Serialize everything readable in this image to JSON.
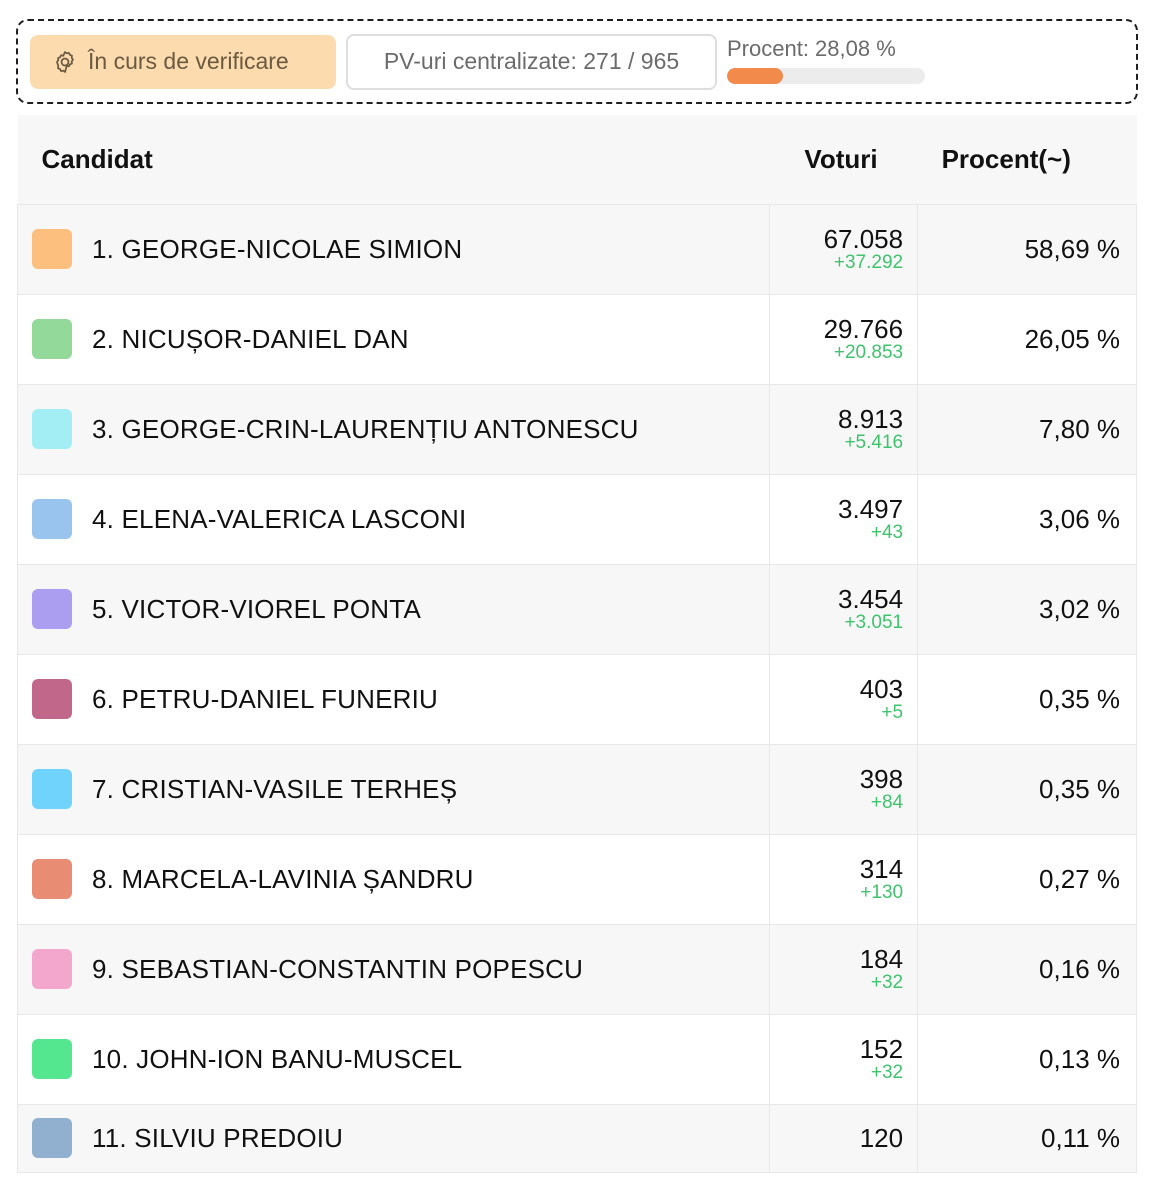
{
  "status": {
    "verify_label": "În curs de verificare",
    "pv_label": "PV-uri centralizate: 271 / 965",
    "percent_label": "Procent: 28,08 %",
    "percent_value": 28.08,
    "accent_color": "#f28a4b",
    "badge_color": "#fcdcae"
  },
  "table": {
    "headers": {
      "candidate": "Candidat",
      "votes": "Voturi",
      "percent": "Procent(~)"
    },
    "rows": [
      {
        "name": "1. GEORGE-NICOLAE SIMION",
        "votes": "67.058",
        "delta": "+37.292",
        "percent": "58,69 %",
        "color": "#fdbf7d"
      },
      {
        "name": "2. NICUȘOR-DANIEL DAN",
        "votes": "29.766",
        "delta": "+20.853",
        "percent": "26,05 %",
        "color": "#92d99a"
      },
      {
        "name": "3. GEORGE-CRIN-LAURENȚIU ANTONESCU",
        "votes": "8.913",
        "delta": "+5.416",
        "percent": "7,80 %",
        "color": "#a3eef5"
      },
      {
        "name": "4. ELENA-VALERICA LASCONI",
        "votes": "3.497",
        "delta": "+43",
        "percent": "3,06 %",
        "color": "#98c4ee"
      },
      {
        "name": "5. VICTOR-VIOREL PONTA",
        "votes": "3.454",
        "delta": "+3.051",
        "percent": "3,02 %",
        "color": "#ab9df0"
      },
      {
        "name": "6. PETRU-DANIEL FUNERIU",
        "votes": "403",
        "delta": "+5",
        "percent": "0,35 %",
        "color": "#c1688a"
      },
      {
        "name": "7. CRISTIAN-VASILE TERHEȘ",
        "votes": "398",
        "delta": "+84",
        "percent": "0,35 %",
        "color": "#70d3fb"
      },
      {
        "name": "8. MARCELA-LAVINIA ȘANDRU",
        "votes": "314",
        "delta": "+130",
        "percent": "0,27 %",
        "color": "#e98c74"
      },
      {
        "name": "9. SEBASTIAN-CONSTANTIN POPESCU",
        "votes": "184",
        "delta": "+32",
        "percent": "0,16 %",
        "color": "#f4a7cc"
      },
      {
        "name": "10. JOHN-ION BANU-MUSCEL",
        "votes": "152",
        "delta": "+32",
        "percent": "0,13 %",
        "color": "#55e690"
      },
      {
        "name": "11. SILVIU PREDOIU",
        "votes": "120",
        "delta": "",
        "percent": "0,11 %",
        "color": "#91b0cf"
      }
    ]
  }
}
